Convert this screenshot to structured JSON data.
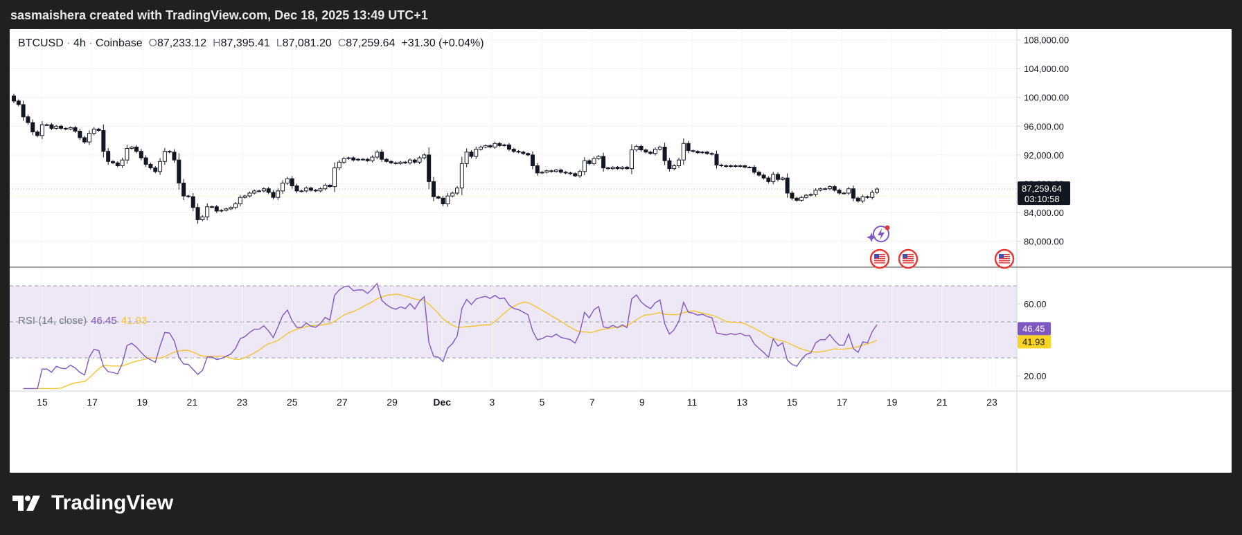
{
  "header": {
    "text": "sasmaishera created with TradingView.com, Dec 18, 2025 13:49 UTC+1"
  },
  "legend": {
    "symbol": "BTCUSD",
    "interval": "4h",
    "exchange": "Coinbase",
    "open_label": "O",
    "open": "87,233.12",
    "high_label": "H",
    "high": "87,395.41",
    "low_label": "L",
    "low": "87,081.20",
    "close_label": "C",
    "close": "87,259.64",
    "change": "+31.30 (+0.04%)"
  },
  "price_badge": {
    "price": "87,259.64",
    "countdown": "03:10:58"
  },
  "rsi": {
    "label": "RSI (14, close)",
    "value": "46.45",
    "ma_value": "41.93",
    "upper_band": 70,
    "lower_band": 30,
    "mid_band": 50
  },
  "colors": {
    "rsi_line": "#7e57c2",
    "rsi_ma": "#f4c430",
    "rsi_band_fill": "#ede7f6",
    "candle": "#131722",
    "price_badge_bg": "#131722",
    "rsi_badge_bg": "#7e57c2",
    "ma_badge_bg": "#f9d423"
  },
  "brand": {
    "name": "TradingView"
  },
  "chart_data": {
    "type": "candlestick",
    "price_axis": {
      "ticks": [
        "108,000.00",
        "104,000.00",
        "100,000.00",
        "96,000.00",
        "92,000.00",
        "88,000.00",
        "84,000.00",
        "80,000.00"
      ],
      "range": [
        76500,
        109500
      ]
    },
    "rsi_axis": {
      "ticks": [
        "60.00",
        "20.00"
      ],
      "range": [
        12,
        80
      ]
    },
    "x_axis": {
      "labels": [
        "15",
        "17",
        "19",
        "21",
        "23",
        "25",
        "27",
        "29",
        "Dec",
        "3",
        "5",
        "7",
        "9",
        "11",
        "13",
        "15",
        "17",
        "19",
        "21",
        "23"
      ]
    },
    "closes": [
      99500,
      99000,
      97300,
      96500,
      95200,
      94700,
      96200,
      96200,
      95700,
      96000,
      95700,
      95600,
      95800,
      95300,
      94400,
      93800,
      95000,
      95600,
      95400,
      92500,
      91100,
      90900,
      90500,
      91300,
      92900,
      93100,
      92500,
      91600,
      90700,
      90200,
      89700,
      91100,
      92500,
      92400,
      91300,
      88100,
      86300,
      86200,
      84700,
      83000,
      83400,
      84800,
      84800,
      84200,
      84300,
      84500,
      84700,
      85200,
      86100,
      86300,
      86700,
      87000,
      87000,
      87300,
      86800,
      86100,
      87000,
      88100,
      88700,
      87700,
      87000,
      87000,
      87400,
      87100,
      87000,
      87300,
      87800,
      87600,
      90200,
      91000,
      91500,
      91600,
      91300,
      91400,
      91400,
      91200,
      91700,
      92400,
      91400,
      91100,
      90900,
      90800,
      91000,
      90900,
      91300,
      91000,
      91600,
      92000,
      88300,
      86200,
      86000,
      85200,
      86300,
      86700,
      87400,
      90800,
      92400,
      91800,
      92800,
      93100,
      93300,
      93100,
      93600,
      93300,
      93400,
      92800,
      92500,
      92400,
      92200,
      92000,
      90500,
      89500,
      89600,
      89800,
      89700,
      89900,
      89600,
      89500,
      89400,
      89100,
      89700,
      91200,
      90800,
      91500,
      91800,
      90200,
      90100,
      90300,
      90100,
      90300,
      90100,
      92700,
      93200,
      92700,
      92400,
      92200,
      92800,
      93100,
      91200,
      90100,
      90500,
      91300,
      93600,
      92600,
      92500,
      92300,
      92400,
      92200,
      92100,
      90600,
      90500,
      90400,
      90500,
      90400,
      90500,
      90300,
      90300,
      89600,
      89200,
      88800,
      88300,
      89300,
      88600,
      88800,
      86700,
      86000,
      85700,
      86100,
      86400,
      86500,
      87100,
      87300,
      87300,
      87600,
      87100,
      86700,
      86700,
      87300,
      86000,
      85600,
      86200,
      86100,
      86800,
      87259
    ]
  }
}
